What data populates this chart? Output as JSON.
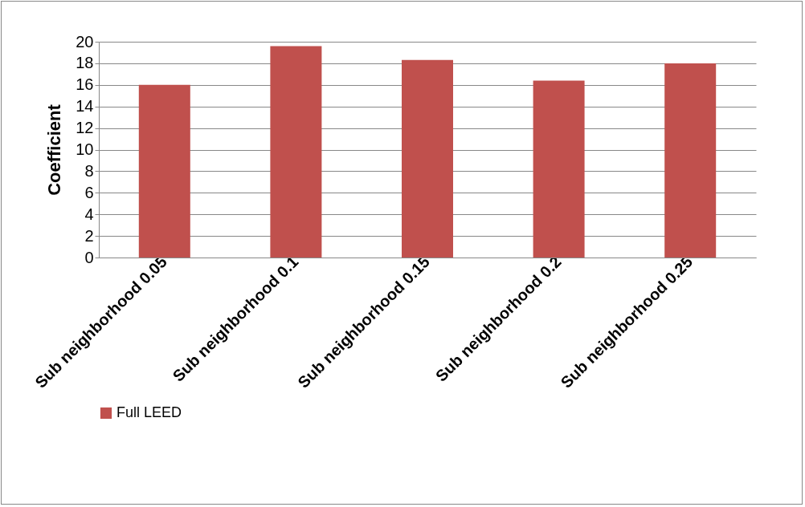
{
  "chart_data": {
    "type": "bar",
    "ylabel": "Coefficient",
    "categories": [
      "Sub neighborhood 0.05",
      "Sub neighborhood 0.1",
      "Sub neighborhood 0.15",
      "Sub neighborhood 0.2",
      "Sub neighborhood 0.25"
    ],
    "series": [
      {
        "name": "Full LEED",
        "color": "#c0504d",
        "values": [
          16.0,
          19.6,
          18.3,
          16.4,
          18.0
        ]
      }
    ],
    "ylim": [
      0,
      20
    ],
    "yticks": [
      0,
      2,
      4,
      6,
      8,
      10,
      12,
      14,
      16,
      18,
      20
    ],
    "grid": "y",
    "legend": "bottom"
  }
}
